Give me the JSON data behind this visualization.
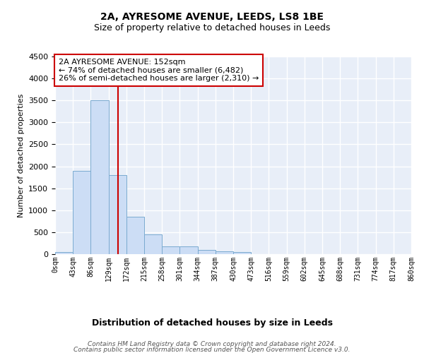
{
  "title1": "2A, AYRESOME AVENUE, LEEDS, LS8 1BE",
  "title2": "Size of property relative to detached houses in Leeds",
  "xlabel": "Distribution of detached houses by size in Leeds",
  "ylabel": "Number of detached properties",
  "bin_edges": [
    0,
    43,
    86,
    129,
    172,
    215,
    258,
    301,
    344,
    387,
    430,
    473,
    516,
    559,
    602,
    645,
    688,
    731,
    774,
    817,
    860
  ],
  "bar_heights": [
    50,
    1900,
    3500,
    1800,
    850,
    450,
    170,
    170,
    90,
    60,
    50,
    0,
    0,
    0,
    0,
    0,
    0,
    0,
    0,
    0
  ],
  "bar_color": "#ccddf5",
  "bar_edge_color": "#7aaad0",
  "vline_x": 152,
  "vline_color": "#cc0000",
  "ylim": [
    0,
    4500
  ],
  "annotation_line1": "2A AYRESOME AVENUE: 152sqm",
  "annotation_line2": "← 74% of detached houses are smaller (6,482)",
  "annotation_line3": "26% of semi-detached houses are larger (2,310) →",
  "annotation_box_color": "#cc0000",
  "footer_line1": "Contains HM Land Registry data © Crown copyright and database right 2024.",
  "footer_line2": "Contains public sector information licensed under the Open Government Licence v3.0.",
  "bg_color": "#e8eef8",
  "grid_color": "#ffffff",
  "title1_fontsize": 10,
  "title2_fontsize": 9,
  "ylabel_fontsize": 8,
  "xlabel_fontsize": 9,
  "tick_fontsize": 7,
  "footer_fontsize": 6.5,
  "tick_labels": [
    "0sqm",
    "43sqm",
    "86sqm",
    "129sqm",
    "172sqm",
    "215sqm",
    "258sqm",
    "301sqm",
    "344sqm",
    "387sqm",
    "430sqm",
    "473sqm",
    "516sqm",
    "559sqm",
    "602sqm",
    "645sqm",
    "688sqm",
    "731sqm",
    "774sqm",
    "817sqm",
    "860sqm"
  ]
}
